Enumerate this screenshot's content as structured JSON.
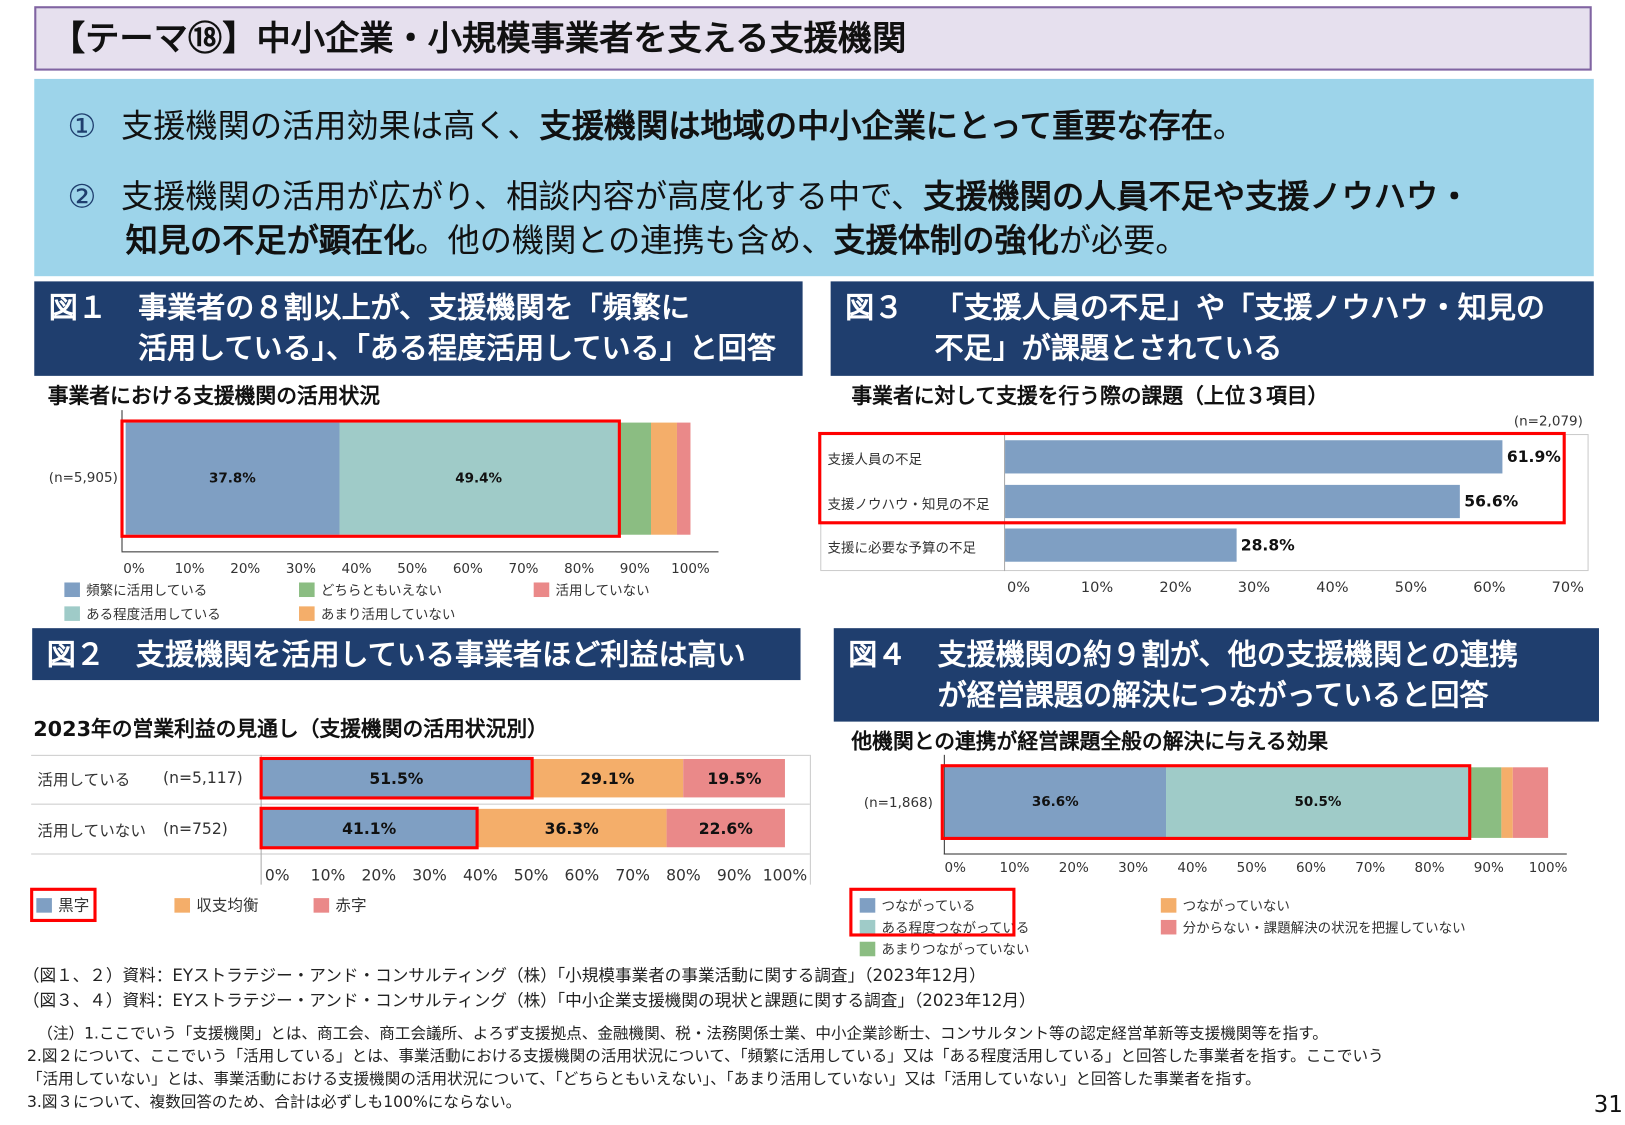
{
  "title": "【テーマ⑱】中小企業・小規模事業者を支える支援機関",
  "summary": {
    "p1": {
      "num": "①",
      "t1": "支援機関の活用効果は高く、",
      "b1": "支援機関は地域の中小企業にとって重要な存在",
      "t2": "。"
    },
    "p2": {
      "num": "②",
      "t1": "支援機関の活用が広がり、相談内容が高度化する中で、",
      "b1": "支援機関の人員不足や支援ノウハウ・",
      "b2": "知見の不足が顕在化",
      "t2": "。他の機関との連携も含め、",
      "b3": "支援体制の強化",
      "t3": "が必要。"
    }
  },
  "fig1": {
    "num": "図１",
    "line1": "事業者の８割以上が、支援機関を「頻繁に",
    "line2": "活用している」、「ある程度活用している」と回答"
  },
  "fig2": {
    "num": "図２",
    "line1": "支援機関を活用している事業者ほど利益は高い"
  },
  "fig3": {
    "num": "図３",
    "line1": "「支援人員の不足」や「支援ノウハウ・知見の",
    "line2": "不足」が課題とされている"
  },
  "fig4": {
    "num": "図４",
    "line1": "支援機関の約９割が、他の支援機関との連携",
    "line2": "が経営課題の解決につながっていると回答"
  },
  "chart_data": [
    {
      "id": "fig1",
      "type": "bar",
      "stacked": true,
      "orientation": "horizontal",
      "title": "事業者における支援機関の活用状況",
      "categories": [
        "(n=5,905)"
      ],
      "series": [
        {
          "name": "頻繁に活用している",
          "values": [
            37.8
          ],
          "label": "37.8%",
          "color": "#7f9fc3"
        },
        {
          "name": "ある程度活用している",
          "values": [
            49.4
          ],
          "label": "49.4%",
          "color": "#9fcbc8"
        },
        {
          "name": "どちらともいえない",
          "values": [
            5.8
          ],
          "color": "#8bbd82"
        },
        {
          "name": "あまり活用していない",
          "values": [
            4.7
          ],
          "color": "#f4ae6a"
        },
        {
          "name": "活用していない",
          "values": [
            2.3
          ],
          "color": "#ea8989"
        }
      ],
      "xlim": [
        0,
        100
      ],
      "ticks": [
        "0%",
        "10%",
        "20%",
        "30%",
        "40%",
        "50%",
        "60%",
        "70%",
        "80%",
        "90%",
        "100%"
      ],
      "legend": "bottom"
    },
    {
      "id": "fig2",
      "type": "bar",
      "stacked": true,
      "orientation": "horizontal",
      "title": "2023年の営業利益の見通し（支援機関の活用状況別）",
      "categories": [
        {
          "label": "活用している",
          "n": "(n=5,117)"
        },
        {
          "label": "活用していない",
          "n": "(n=752)"
        }
      ],
      "series": [
        {
          "name": "黒字",
          "values": [
            51.5,
            41.1
          ],
          "labels": [
            "51.5%",
            "41.1%"
          ],
          "color": "#7f9fc3"
        },
        {
          "name": "収支均衡",
          "values": [
            29.1,
            36.3
          ],
          "labels": [
            "29.1%",
            "36.3%"
          ],
          "color": "#f4ae6a"
        },
        {
          "name": "赤字",
          "values": [
            19.5,
            22.6
          ],
          "labels": [
            "19.5%",
            "22.6%"
          ],
          "color": "#ea8989"
        }
      ],
      "xlim": [
        0,
        100
      ],
      "ticks": [
        "0%",
        "10%",
        "20%",
        "30%",
        "40%",
        "50%",
        "60%",
        "70%",
        "80%",
        "90%",
        "100%"
      ],
      "legend": "bottom"
    },
    {
      "id": "fig3",
      "type": "bar",
      "orientation": "horizontal",
      "title": "事業者に対して支援を行う際の課題（上位３項目）",
      "n": "(n=2,079)",
      "categories": [
        "支援人員の不足",
        "支援ノウハウ・知見の不足",
        "支援に必要な予算の不足"
      ],
      "values": [
        61.9,
        56.6,
        28.8
      ],
      "labels": [
        "61.9%",
        "56.6%",
        "28.8%"
      ],
      "color": "#7f9fc3",
      "xlim": [
        0,
        70
      ],
      "ticks": [
        "0%",
        "10%",
        "20%",
        "30%",
        "40%",
        "50%",
        "60%",
        "70%"
      ]
    },
    {
      "id": "fig4",
      "type": "bar",
      "stacked": true,
      "orientation": "horizontal",
      "title": "他機関との連携が経営課題全般の解決に与える効果",
      "categories": [
        "(n=1,868)"
      ],
      "series": [
        {
          "name": "つながっている",
          "values": [
            36.6
          ],
          "label": "36.6%",
          "color": "#7f9fc3"
        },
        {
          "name": "ある程度つながっている",
          "values": [
            50.5
          ],
          "label": "50.5%",
          "color": "#9fcbc8"
        },
        {
          "name": "あまりつながっていない",
          "values": [
            5.2
          ],
          "color": "#8bbd82"
        },
        {
          "name": "つながっていない",
          "values": [
            1.8
          ],
          "color": "#f4ae6a"
        },
        {
          "name": "分からない・課題解決の状況を把握していない",
          "values": [
            5.9
          ],
          "color": "#ea8989"
        }
      ],
      "xlim": [
        0,
        100
      ],
      "ticks": [
        "0%",
        "10%",
        "20%",
        "30%",
        "40%",
        "50%",
        "60%",
        "70%",
        "80%",
        "90%",
        "100%"
      ],
      "legend": "bottom"
    }
  ],
  "sources": [
    "（図１、２）資料：EYストラテジー・アンド・コンサルティング（株）「小規模事業者の事業活動に関する調査」（2023年12月）",
    "（図３、４）資料：EYストラテジー・アンド・コンサルティング（株）「中小企業支援機関の現状と課題に関する調査」（2023年12月）"
  ],
  "notes": [
    "（注）1.ここでいう「支援機関」とは、商工会、商工会議所、よろず支援拠点、金融機関、税・法務関係士業、中小企業診断士、コンサルタント等の認定経営革新等支援機関等を指す。",
    "2.図２について、ここでいう「活用している」とは、事業活動における支援機関の活用状況について、「頻繁に活用している」又は「ある程度活用している」と回答した事業者を指す。ここでいう",
    "「活用していない」とは、事業活動における支援機関の活用状況について、「どちらともいえない」、「あまり活用していない」又は「活用していない」と回答した事業者を指す。",
    "3.図３について、複数回答のため、合計は必ずしも100%にならない。"
  ],
  "page_number": "31"
}
